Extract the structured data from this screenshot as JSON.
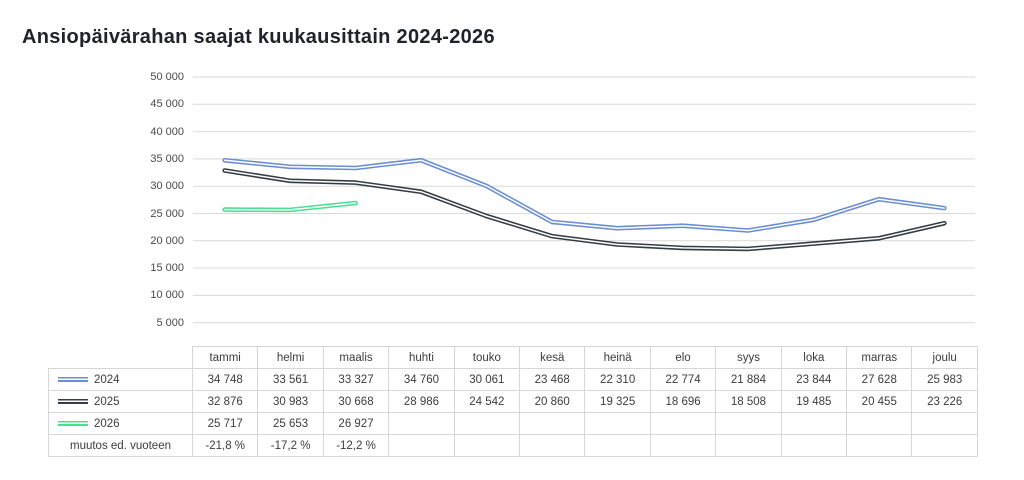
{
  "title": "Ansiopäivärahan saajat kuukausittain 2024-2026",
  "chart_data": {
    "type": "line",
    "title": "Ansiopäivärahan saajat kuukausittain 2024-2026",
    "categories": [
      "tammi",
      "helmi",
      "maalis",
      "huhti",
      "touko",
      "kesä",
      "heinä",
      "elo",
      "syys",
      "loka",
      "marras",
      "joulu"
    ],
    "series": [
      {
        "name": "2024",
        "color": "#6b8ed2",
        "values": [
          34748,
          33561,
          33327,
          34760,
          30061,
          23468,
          22310,
          22774,
          21884,
          23844,
          27628,
          25983
        ]
      },
      {
        "name": "2025",
        "color": "#343d44",
        "values": [
          32876,
          30983,
          30668,
          28986,
          24542,
          20860,
          19325,
          18696,
          18508,
          19485,
          20455,
          23226
        ]
      },
      {
        "name": "2026",
        "color": "#47e093",
        "values": [
          25717,
          25653,
          26927
        ]
      }
    ],
    "ylim": [
      0,
      50000
    ],
    "ytick_step": 5000,
    "ytick_labels": [
      "-",
      "5 000",
      "10 000",
      "15 000",
      "20 000",
      "25 000",
      "30 000",
      "35 000",
      "40 000",
      "45 000",
      "50 000"
    ],
    "grid": true,
    "line_style": "double-stroke",
    "legend_position": "table-row-labels"
  },
  "table": {
    "muutos_row_label": "muutos ed. vuoteen",
    "muutos_values": [
      "-21,8 %",
      "-17,2 %",
      "-12,2 %",
      "",
      "",
      "",
      "",
      "",
      "",
      "",
      "",
      ""
    ]
  },
  "colors": {
    "grid": "#d9d9d9",
    "table_border": "#d6d6d6",
    "text": "#3c3c3c",
    "title": "#20242a",
    "series_2024": "#6b8ed2",
    "series_2025": "#343d44",
    "series_2026": "#47e093"
  }
}
